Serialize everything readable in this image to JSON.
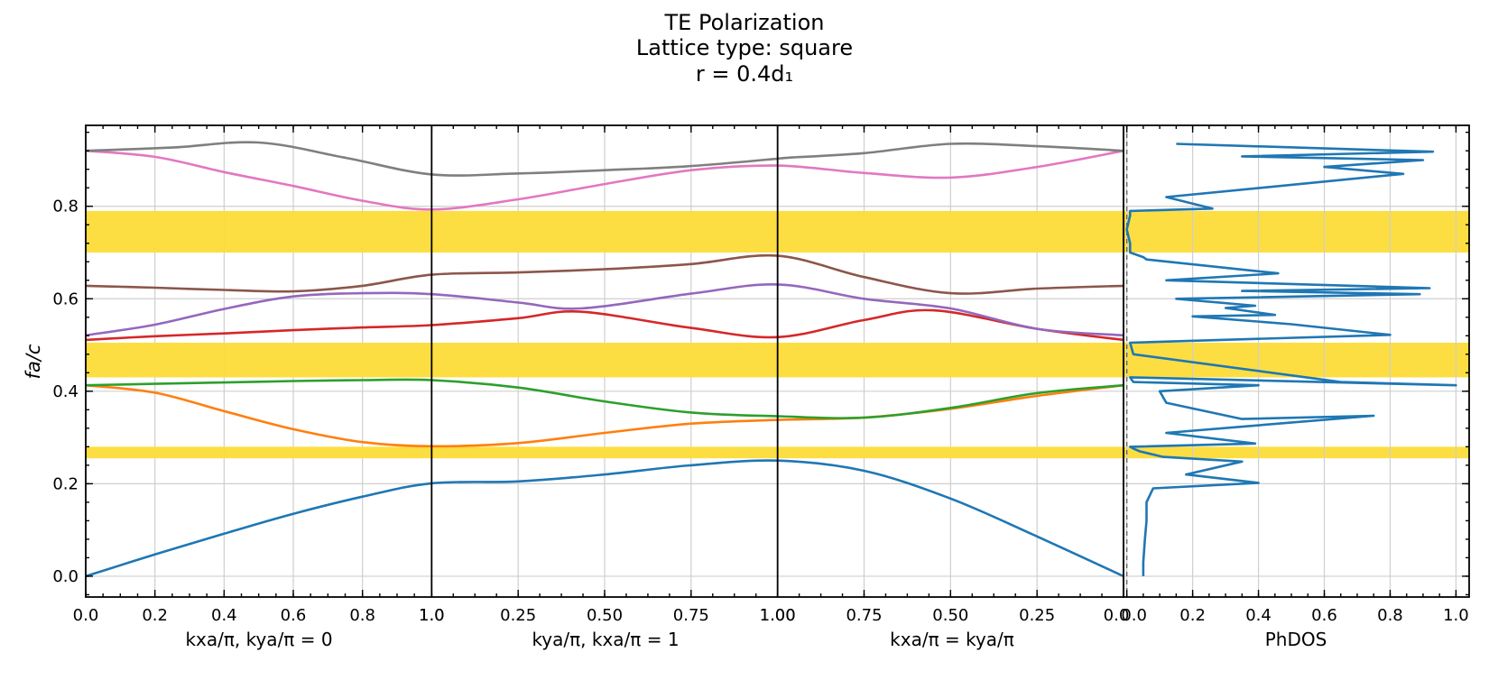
{
  "chart_data": {
    "type": "line",
    "title_lines": [
      "TE Polarization",
      "Lattice type: square",
      "r = 0.4d₁"
    ],
    "ylabel": "fa/c",
    "ylim": [
      -0.045,
      0.975
    ],
    "yticks": [
      "0.0",
      "0.2",
      "0.4",
      "0.6",
      "0.8"
    ],
    "band_gaps": [
      [
        0.255,
        0.28
      ],
      [
        0.43,
        0.505
      ],
      [
        0.7,
        0.79
      ]
    ],
    "gap_color": "#FDDC38",
    "segments": [
      {
        "xlabel": "kxa/π, kya/π = 0",
        "ticks": [
          "0.0",
          "0.2",
          "0.4",
          "0.6",
          "0.8",
          "1.0"
        ]
      },
      {
        "xlabel": "kya/π, kxa/π = 1",
        "ticks": [
          "0.25",
          "0.50",
          "0.75",
          "1.00"
        ]
      },
      {
        "xlabel": "kxa/π = kya/π",
        "ticks": [
          "0.75",
          "0.50",
          "0.25",
          "0.0"
        ]
      }
    ],
    "x_path": "Γ(0,0) → X(1,0) → M(1,1) → Γ(0,0), normalized path position t in [0,3]",
    "series": [
      {
        "color": "#1f77b4",
        "t": [
          0,
          0.2,
          0.4,
          0.6,
          0.8,
          1.0,
          1.25,
          1.5,
          1.75,
          2.0,
          2.25,
          2.5,
          2.75,
          3.0
        ],
        "values": [
          0.0,
          0.047,
          0.092,
          0.135,
          0.172,
          0.201,
          0.205,
          0.22,
          0.24,
          0.25,
          0.228,
          0.168,
          0.086,
          0.0
        ]
      },
      {
        "color": "#ff7f0e",
        "t": [
          0,
          0.2,
          0.4,
          0.6,
          0.8,
          1.0,
          1.25,
          1.5,
          1.75,
          2.0,
          2.25,
          2.5,
          2.75,
          3.0
        ],
        "values": [
          0.413,
          0.397,
          0.357,
          0.318,
          0.29,
          0.281,
          0.288,
          0.31,
          0.33,
          0.338,
          0.343,
          0.362,
          0.39,
          0.413
        ]
      },
      {
        "color": "#2ca02c",
        "t": [
          0,
          0.2,
          0.4,
          0.6,
          0.8,
          1.0,
          1.25,
          1.5,
          1.75,
          2.0,
          2.25,
          2.5,
          2.75,
          3.0
        ],
        "values": [
          0.413,
          0.416,
          0.419,
          0.422,
          0.424,
          0.424,
          0.408,
          0.378,
          0.354,
          0.346,
          0.343,
          0.364,
          0.396,
          0.413
        ]
      },
      {
        "color": "#d62728",
        "t": [
          0,
          0.2,
          0.4,
          0.6,
          0.8,
          1.0,
          1.25,
          1.43,
          1.75,
          2.0,
          2.25,
          2.45,
          2.75,
          3.0
        ],
        "values": [
          0.511,
          0.519,
          0.525,
          0.532,
          0.538,
          0.543,
          0.558,
          0.572,
          0.537,
          0.517,
          0.554,
          0.575,
          0.535,
          0.511
        ]
      },
      {
        "color": "#9467bd",
        "t": [
          0,
          0.2,
          0.4,
          0.6,
          0.8,
          1.0,
          1.25,
          1.43,
          1.75,
          2.0,
          2.25,
          2.5,
          2.75,
          3.0
        ],
        "values": [
          0.521,
          0.544,
          0.578,
          0.605,
          0.612,
          0.61,
          0.592,
          0.579,
          0.611,
          0.631,
          0.6,
          0.579,
          0.535,
          0.521
        ]
      },
      {
        "color": "#8c564b",
        "t": [
          0,
          0.2,
          0.4,
          0.6,
          0.8,
          1.0,
          1.25,
          1.5,
          1.75,
          2.0,
          2.25,
          2.5,
          2.75,
          3.0
        ],
        "values": [
          0.628,
          0.624,
          0.619,
          0.616,
          0.628,
          0.652,
          0.657,
          0.664,
          0.675,
          0.693,
          0.647,
          0.612,
          0.622,
          0.628
        ]
      },
      {
        "color": "#e377c2",
        "t": [
          0,
          0.2,
          0.4,
          0.6,
          0.8,
          1.0,
          1.25,
          1.5,
          1.75,
          2.0,
          2.25,
          2.5,
          2.75,
          3.0
        ],
        "values": [
          0.92,
          0.907,
          0.874,
          0.844,
          0.812,
          0.793,
          0.815,
          0.848,
          0.878,
          0.888,
          0.872,
          0.862,
          0.885,
          0.92
        ]
      },
      {
        "color": "#7f7f7f",
        "t": [
          0,
          0.25,
          0.5,
          0.75,
          1.0,
          1.25,
          1.5,
          1.75,
          2.0,
          2.03,
          2.25,
          2.5,
          2.75,
          3.0
        ],
        "values": [
          0.92,
          0.927,
          0.938,
          0.905,
          0.869,
          0.871,
          0.878,
          0.887,
          0.903,
          0.905,
          0.915,
          0.935,
          0.93,
          0.92
        ]
      }
    ],
    "phdos": {
      "xlabel": "PhDOS",
      "ticks": [
        "0.0",
        "0.2",
        "0.4",
        "0.6",
        "0.8",
        "1.0"
      ],
      "xlim": [
        -0.01,
        1.04
      ],
      "dashed_x": 0.0,
      "color": "#1f77b4",
      "dos": [
        0.05,
        0.05,
        0.055,
        0.06,
        0.06,
        0.08,
        0.4,
        0.18,
        0.35,
        0.11,
        0.04,
        0.02,
        0.01,
        0.39,
        0.12,
        0.75,
        0.35,
        0.12,
        0.1,
        0.4,
        0.02,
        0.01,
        1.0,
        0.65,
        0.02,
        0.01,
        0.8,
        0.5,
        0.2,
        0.45,
        0.3,
        0.39,
        0.15,
        0.89,
        0.35,
        0.92,
        0.12,
        0.46,
        0.06,
        0.05,
        0.01,
        0.01,
        0.0,
        0.01,
        0.01,
        0.26,
        0.12,
        0.84,
        0.6,
        0.9,
        0.35,
        0.93,
        0.15
      ],
      "freq": [
        0.0,
        0.03,
        0.08,
        0.12,
        0.16,
        0.19,
        0.202,
        0.22,
        0.248,
        0.258,
        0.27,
        0.276,
        0.28,
        0.287,
        0.31,
        0.347,
        0.34,
        0.375,
        0.4,
        0.413,
        0.42,
        0.43,
        0.413,
        0.42,
        0.48,
        0.505,
        0.522,
        0.545,
        0.562,
        0.565,
        0.58,
        0.585,
        0.6,
        0.61,
        0.617,
        0.623,
        0.64,
        0.655,
        0.685,
        0.69,
        0.7,
        0.72,
        0.75,
        0.78,
        0.79,
        0.795,
        0.82,
        0.87,
        0.885,
        0.9,
        0.908,
        0.918,
        0.935
      ]
    }
  }
}
